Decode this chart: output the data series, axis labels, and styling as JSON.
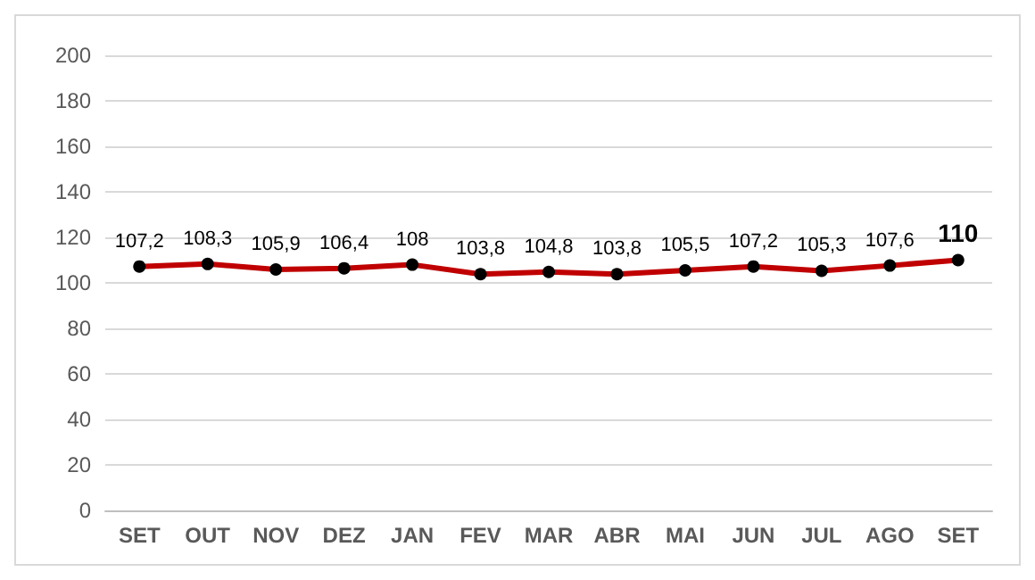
{
  "chart_data": {
    "type": "line",
    "categories": [
      "SET",
      "OUT",
      "NOV",
      "DEZ",
      "JAN",
      "FEV",
      "MAR",
      "ABR",
      "MAI",
      "JUN",
      "JUL",
      "AGO",
      "SET"
    ],
    "series": [
      {
        "color": "#c00000",
        "values": [
          107.2,
          108.3,
          105.9,
          106.4,
          108,
          103.8,
          104.8,
          103.8,
          105.5,
          107.2,
          105.3,
          107.6,
          110
        ],
        "value_labels": [
          "107,2",
          "108,3",
          "105,9",
          "106,4",
          "108",
          "103,8",
          "104,8",
          "103,8",
          "105,5",
          "107,2",
          "105,3",
          "107,6",
          "110"
        ]
      }
    ],
    "ylim": [
      0,
      200
    ],
    "yticks": [
      0,
      20,
      40,
      60,
      80,
      100,
      120,
      140,
      160,
      180,
      200
    ],
    "grid": "y",
    "marker": "circle",
    "line_style": "solid"
  }
}
